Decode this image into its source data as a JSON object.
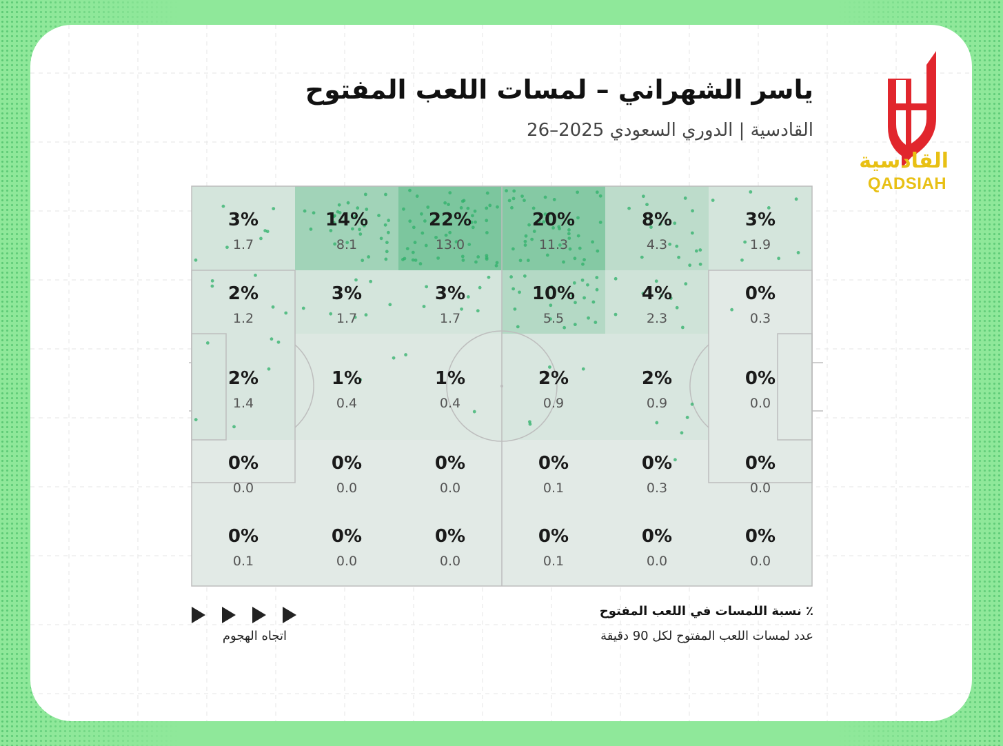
{
  "header": {
    "title": "ياسر الشهراني – لمسات اللعب المفتوح",
    "subtitle": "القادسية | الدوري السعودي 2025–26"
  },
  "logo": {
    "text_ar": "القادسية",
    "text_en": "QADSIAH",
    "colors": {
      "red": "#e1262d",
      "gold": "#e8c014"
    }
  },
  "legend": {
    "title": "٪ نسبة اللمسات في اللعب المفتوح",
    "subtitle": "عدد لمسات اللعب المفتوح لكل 90 دقيقة",
    "direction_label": "اتجاه الهجوم"
  },
  "colors": {
    "background": "#8fe89a",
    "heat": "#2aa864",
    "dot": "#2fb06a",
    "pitch_base": "#eeeeee",
    "pitch_lines": "#bdbdbd"
  },
  "chart_data": {
    "type": "heatmap",
    "rows": 5,
    "cols": 6,
    "percentages": [
      [
        "3%",
        "14%",
        "22%",
        "20%",
        "8%",
        "3%"
      ],
      [
        "2%",
        "3%",
        "3%",
        "10%",
        "4%",
        "0%"
      ],
      [
        "2%",
        "1%",
        "1%",
        "2%",
        "2%",
        "0%"
      ],
      [
        "0%",
        "0%",
        "0%",
        "0%",
        "0%",
        "0%"
      ],
      [
        "0%",
        "0%",
        "0%",
        "0%",
        "0%",
        "0%"
      ]
    ],
    "per90": [
      [
        "1.7",
        "8.1",
        "13.0",
        "11.3",
        "4.3",
        "1.9"
      ],
      [
        "1.2",
        "1.7",
        "1.7",
        "5.5",
        "2.3",
        "0.3"
      ],
      [
        "1.4",
        "0.4",
        "0.4",
        "0.9",
        "0.9",
        "0.0"
      ],
      [
        "0.0",
        "0.0",
        "0.0",
        "0.1",
        "0.3",
        "0.0"
      ],
      [
        "0.1",
        "0.0",
        "0.0",
        "0.1",
        "0.0",
        "0.0"
      ]
    ]
  }
}
